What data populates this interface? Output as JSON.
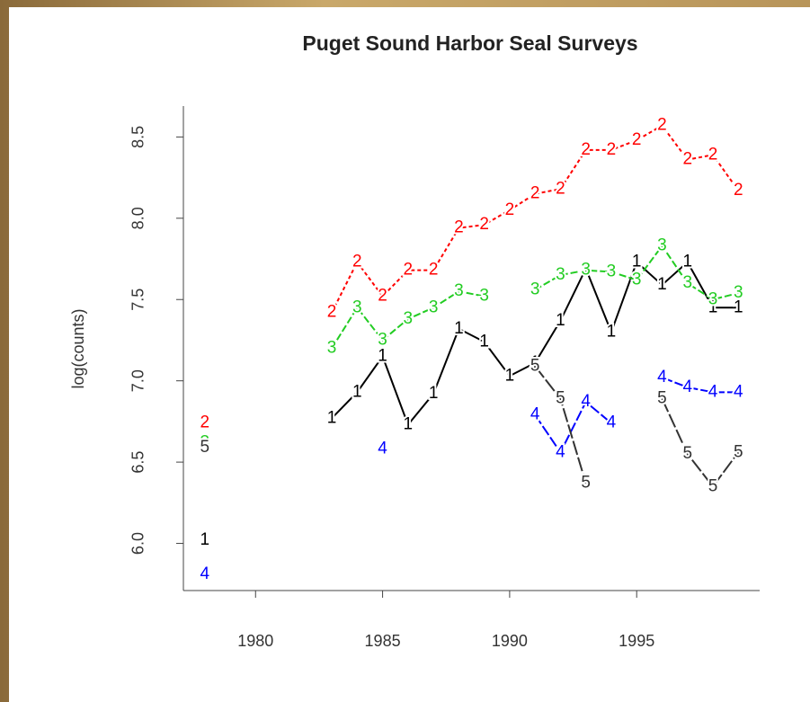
{
  "chart_data": {
    "type": "line",
    "title": "Puget Sound Harbor Seal Surveys",
    "ylabel": "log(counts)",
    "x": [
      1978,
      1979,
      1980,
      1981,
      1982,
      1983,
      1984,
      1985,
      1986,
      1987,
      1988,
      1989,
      1990,
      1991,
      1992,
      1993,
      1994,
      1995,
      1996,
      1997,
      1998,
      1999
    ],
    "series": [
      {
        "name": "1",
        "color": "#000000",
        "values": [
          6.02,
          null,
          null,
          null,
          null,
          6.77,
          6.93,
          7.15,
          6.73,
          6.92,
          7.32,
          7.24,
          7.03,
          7.11,
          7.37,
          7.69,
          7.3,
          7.73,
          7.59,
          7.73,
          7.45,
          7.45
        ]
      },
      {
        "name": "2",
        "color": "#ff0000",
        "values": [
          6.74,
          null,
          null,
          null,
          null,
          7.42,
          7.73,
          7.52,
          7.68,
          7.68,
          7.94,
          7.96,
          8.05,
          8.15,
          8.18,
          8.42,
          8.42,
          8.48,
          8.57,
          8.36,
          8.39,
          8.17
        ]
      },
      {
        "name": "3",
        "color": "#22cc22",
        "values": [
          6.62,
          null,
          null,
          null,
          null,
          7.2,
          7.45,
          7.25,
          7.38,
          7.45,
          7.55,
          7.52,
          null,
          7.56,
          7.65,
          7.68,
          7.67,
          7.62,
          7.83,
          7.6,
          7.5,
          7.54
        ]
      },
      {
        "name": "4",
        "color": "#0000ff",
        "values": [
          5.81,
          null,
          null,
          null,
          null,
          null,
          null,
          6.58,
          null,
          null,
          null,
          null,
          null,
          6.79,
          6.56,
          6.87,
          6.74,
          null,
          7.02,
          6.96,
          6.93,
          6.93
        ]
      },
      {
        "name": "5",
        "color": "#333333",
        "values": [
          6.59,
          null,
          null,
          null,
          null,
          null,
          null,
          null,
          null,
          null,
          null,
          null,
          null,
          7.09,
          6.89,
          6.37,
          null,
          null,
          6.89,
          6.55,
          6.35,
          6.56
        ]
      }
    ],
    "xlim": [
      1977.16,
      1999.84
    ],
    "xticks": [
      1980,
      1985,
      1990,
      1995
    ],
    "ylim": [
      5.71,
      8.69
    ],
    "yticks": [
      {
        "value": 6,
        "label": "6.0"
      },
      6.5,
      {
        "value": 7,
        "label": "7.0"
      },
      7.5,
      {
        "value": 8,
        "label": "8.0"
      },
      8.5
    ]
  }
}
